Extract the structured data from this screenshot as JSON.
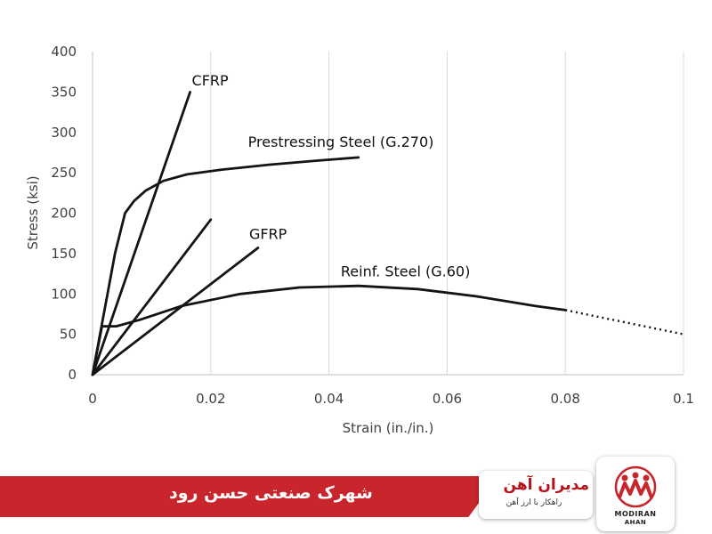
{
  "chart_data": {
    "type": "line",
    "xlabel": "Strain (in./in.)",
    "ylabel": "Stress (ksi)",
    "xlim": [
      0,
      0.1
    ],
    "ylim": [
      0,
      400
    ],
    "x_ticks": [
      "0",
      "0.02",
      "0.04",
      "0.06",
      "0.08",
      "0.1"
    ],
    "x_tick_values": [
      0,
      0.02,
      0.04,
      0.06,
      0.08,
      0.1
    ],
    "y_ticks": [
      "0",
      "50",
      "100",
      "150",
      "200",
      "250",
      "300",
      "350",
      "400"
    ],
    "y_tick_values": [
      0,
      50,
      100,
      150,
      200,
      250,
      300,
      350,
      400
    ],
    "grid": "vertical",
    "series": [
      {
        "name": "CFRP",
        "label_at": [
          0.0168,
          358
        ],
        "points": [
          [
            0,
            0
          ],
          [
            0.0165,
            350
          ]
        ]
      },
      {
        "name": "Prestressing Steel (G.270)",
        "label_at": [
          0.0263,
          282
        ],
        "points": [
          [
            0,
            0
          ],
          [
            0.0038,
            150
          ],
          [
            0.0055,
            200
          ],
          [
            0.007,
            215
          ],
          [
            0.009,
            228
          ],
          [
            0.012,
            240
          ],
          [
            0.016,
            248
          ],
          [
            0.022,
            254
          ],
          [
            0.03,
            260
          ],
          [
            0.038,
            265
          ],
          [
            0.045,
            269
          ]
        ]
      },
      {
        "name": "GFRP",
        "label_at": [
          0.0265,
          168
        ],
        "points": [
          [
            0,
            0
          ],
          [
            0.02,
            192
          ]
        ]
      },
      {
        "name": "",
        "points": [
          [
            0,
            0
          ],
          [
            0.028,
            157
          ]
        ]
      },
      {
        "name": "Reinf. Steel (G.60)",
        "label_at": [
          0.042,
          122
        ],
        "points": [
          [
            0,
            0
          ],
          [
            0.0016,
            60
          ],
          [
            0.004,
            60
          ],
          [
            0.008,
            68
          ],
          [
            0.015,
            85
          ],
          [
            0.025,
            100
          ],
          [
            0.035,
            108
          ],
          [
            0.045,
            110
          ],
          [
            0.055,
            106
          ],
          [
            0.065,
            97
          ],
          [
            0.075,
            85
          ],
          [
            0.08,
            80
          ]
        ],
        "extension_dotted": [
          [
            0.08,
            80
          ],
          [
            0.1,
            50
          ]
        ]
      }
    ]
  },
  "banner": {
    "caption": "شهرک صنعتی حسن رود",
    "brand_name": "مدیران آهن",
    "brand_tagline": "راهکار با ارز آهن",
    "logo_line1": "MODIRAN",
    "logo_line2": "AHAN",
    "accent_color": "#c8262c"
  }
}
